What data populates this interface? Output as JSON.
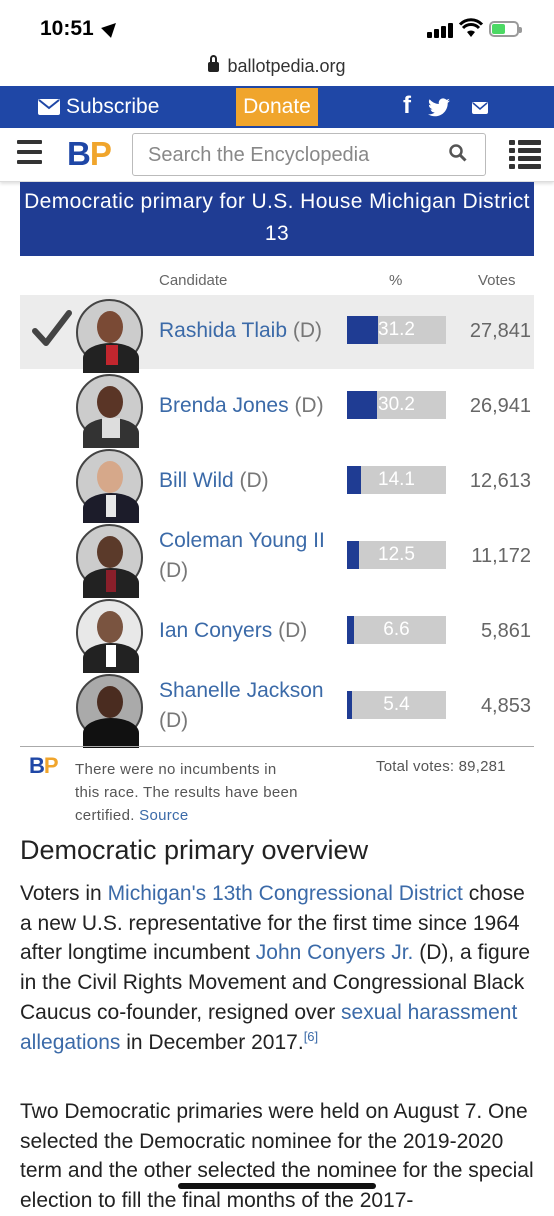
{
  "status_bar": {
    "time": "10:51"
  },
  "browser": {
    "url": "ballotpedia.org"
  },
  "topnav": {
    "subscribe_label": "Subscribe",
    "donate_label": "Donate",
    "facebook_label": "f"
  },
  "header": {
    "search_placeholder": "Search the Encyclopedia",
    "logo_b": "B",
    "logo_p": "P"
  },
  "results": {
    "title": "Democratic primary for U.S. House Michigan District 13",
    "columns": {
      "candidate": "Candidate",
      "percent": "%",
      "votes": "Votes"
    },
    "candidates": [
      {
        "first": "Rashida Tlaib",
        "party": "(D)",
        "percent": "31.2",
        "votes": "27,841",
        "winner": true
      },
      {
        "first": "Brenda Jones",
        "party": "(D)",
        "percent": "30.2",
        "votes": "26,941"
      },
      {
        "first": "Bill Wild",
        "party": "(D)",
        "percent": "14.1",
        "votes": "12,613"
      },
      {
        "first": "Coleman Young II",
        "party": "(D)",
        "percent": "12.5",
        "votes": "11,172"
      },
      {
        "first": "Ian Conyers",
        "party": "(D)",
        "percent": "6.6",
        "votes": "5,861"
      },
      {
        "first": "Shanelle Jackson",
        "party": "(D)",
        "percent": "5.4",
        "votes": "4,853"
      }
    ],
    "footnote": "There were no incumbents in this race. The results have been certified.",
    "source_label": "Source",
    "total_votes": "Total votes: 89,281"
  },
  "article": {
    "heading": "Democratic primary overview",
    "p1": {
      "link1": "Michigan's 13th Congressional District",
      "t1": "Voters in ",
      "t2": " chose a new U.S. representative for the first time since 1964 after longtime incumbent ",
      "link2": "John Conyers Jr.",
      "t3": " (D), a figure in the Civil Rights Movement and Congressional Black Caucus co-founder, resigned over ",
      "link3": "sexual harassment allegations",
      "t4": " in December 2017.",
      "ref": "[6]"
    },
    "p2": "Two Democratic primaries were held on August 7. One selected the Democratic nominee for the 2019-2020 term and the other selected the nominee for the special election to fill the final months of the 2017-"
  },
  "colors": {
    "brand_blue": "#1f47a6",
    "brand_orange": "#f0a52c",
    "bar_blue": "#1f3c93",
    "link": "#3b6aa8"
  }
}
